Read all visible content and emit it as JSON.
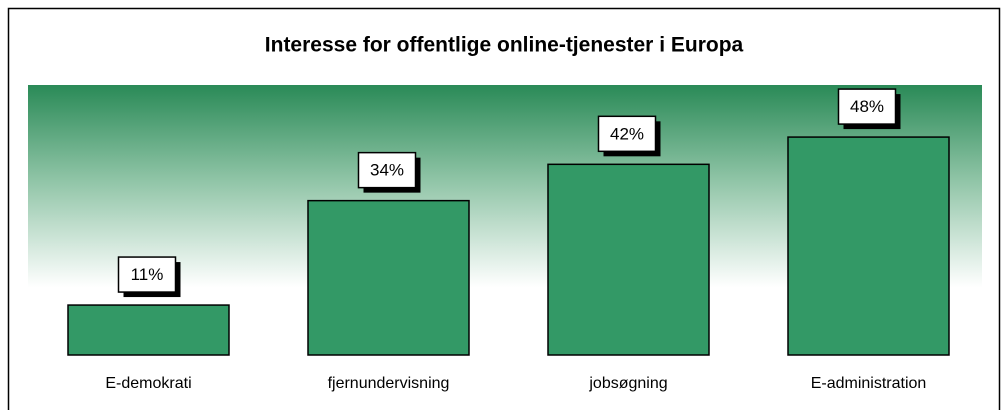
{
  "chart_data": {
    "type": "bar",
    "title": "Interesse for offentlige online-tjenester i Europa",
    "categories": [
      "E-demokrati",
      "fjernundervisning",
      "jobsøgning",
      "E-administration"
    ],
    "values": [
      11,
      34,
      42,
      48
    ],
    "value_labels": [
      "11%",
      "34%",
      "42%",
      "48%"
    ],
    "color": "#339966"
  }
}
